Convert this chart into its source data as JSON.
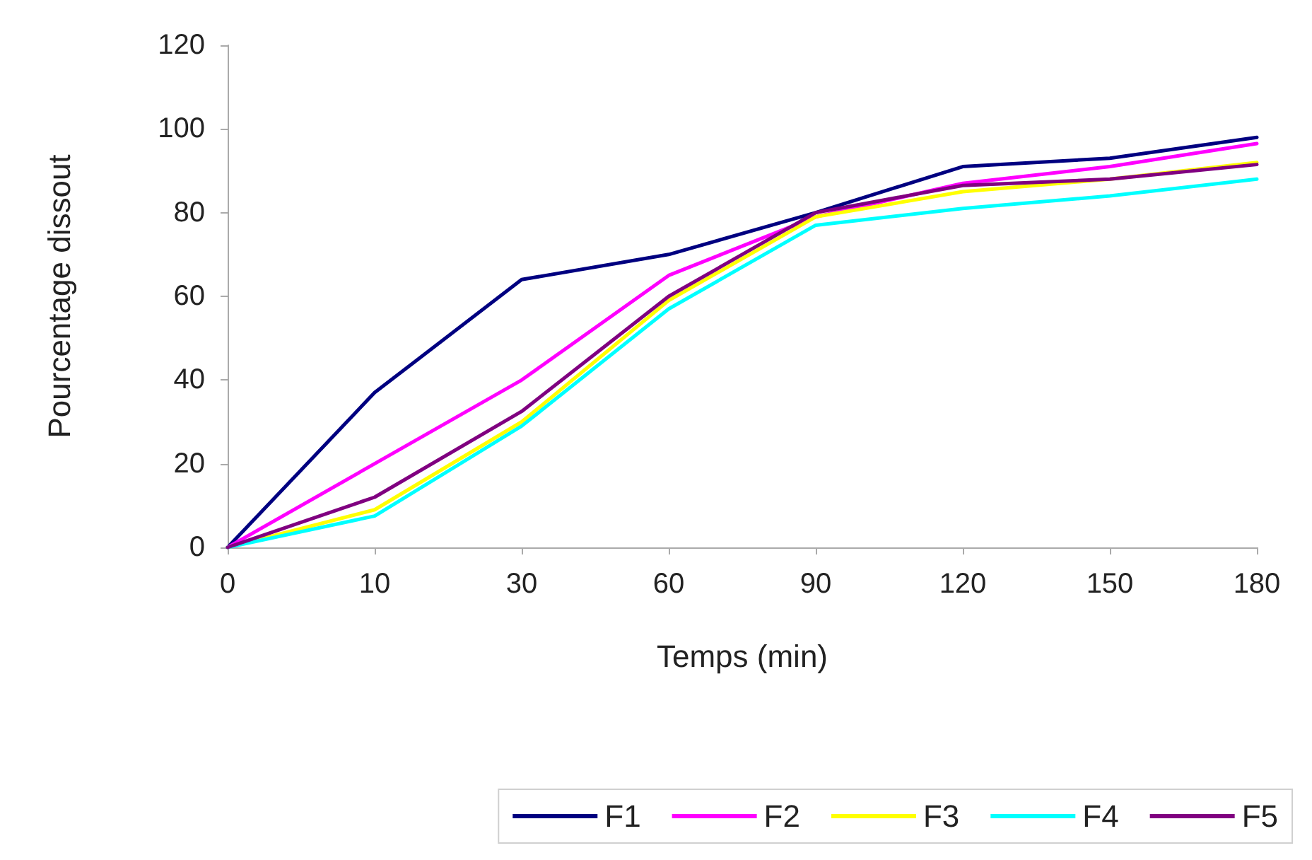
{
  "chart_data": {
    "type": "line",
    "xlabel": "Temps (min)",
    "ylabel": "Pourcentage dissout",
    "categories": [
      "0",
      "10",
      "30",
      "60",
      "90",
      "120",
      "150",
      "180"
    ],
    "series": [
      {
        "name": "F1",
        "color": "#000080",
        "values": [
          0,
          37,
          64,
          70,
          80,
          91,
          93,
          98
        ]
      },
      {
        "name": "F2",
        "color": "#ff00ff",
        "values": [
          0,
          20,
          40,
          65,
          79,
          87,
          91,
          96.5
        ]
      },
      {
        "name": "F3",
        "color": "#ffff00",
        "values": [
          0,
          9,
          30,
          59,
          79,
          85,
          88,
          92
        ]
      },
      {
        "name": "F4",
        "color": "#00ffff",
        "values": [
          0,
          7.5,
          29,
          57,
          77,
          81,
          84,
          88
        ]
      },
      {
        "name": "F5",
        "color": "#800080",
        "values": [
          0,
          12,
          32.5,
          60,
          80,
          86.5,
          88,
          91.5
        ]
      }
    ],
    "ylim": [
      0,
      120
    ],
    "yticks": [
      0,
      20,
      40,
      60,
      80,
      100,
      120
    ],
    "grid": false,
    "legend": "bottom",
    "marker": "none",
    "line_style": "solid"
  }
}
